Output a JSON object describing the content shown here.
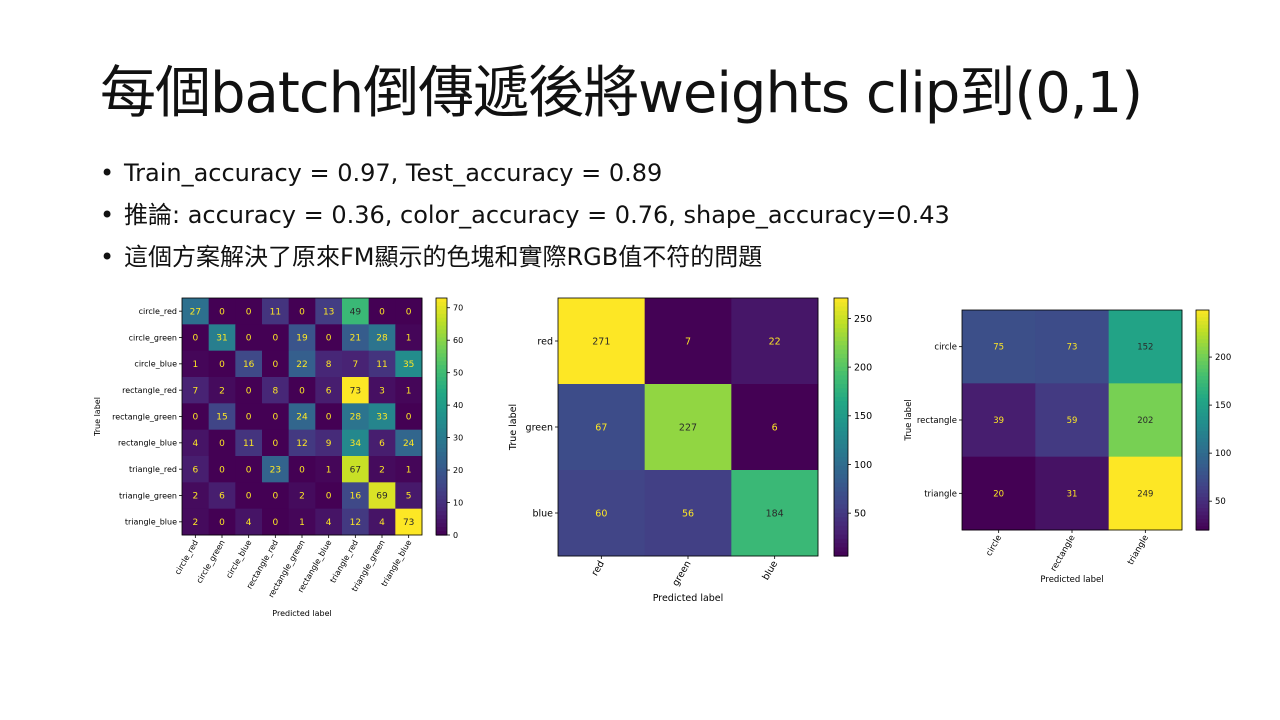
{
  "slide": {
    "title": "每個batch倒傳遞後將weights clip到(0,1)",
    "bullets": [
      "Train_accuracy = 0.97, Test_accuracy = 0.89",
      "推論: accuracy = 0.36, color_accuracy = 0.76, shape_accuracy=0.43",
      "這個方案解決了原來FM顯示的色塊和實際RGB值不符的問題"
    ]
  },
  "chart_data": [
    {
      "type": "heatmap",
      "title": "",
      "xlabel": "Predicted label",
      "ylabel": "True label",
      "colormap": "viridis",
      "categories": [
        "circle_red",
        "circle_green",
        "circle_blue",
        "rectangle_red",
        "rectangle_green",
        "rectangle_blue",
        "triangle_red",
        "triangle_green",
        "triangle_blue"
      ],
      "matrix": [
        [
          27,
          0,
          0,
          11,
          0,
          13,
          49,
          0,
          0
        ],
        [
          0,
          31,
          0,
          0,
          19,
          0,
          21,
          28,
          1
        ],
        [
          1,
          0,
          16,
          0,
          22,
          8,
          7,
          11,
          35
        ],
        [
          7,
          2,
          0,
          8,
          0,
          6,
          73,
          3,
          1
        ],
        [
          0,
          15,
          0,
          0,
          24,
          0,
          28,
          33,
          0
        ],
        [
          4,
          0,
          11,
          0,
          12,
          9,
          34,
          6,
          24
        ],
        [
          6,
          0,
          0,
          23,
          0,
          1,
          67,
          2,
          1
        ],
        [
          2,
          6,
          0,
          0,
          2,
          0,
          16,
          69,
          5
        ],
        [
          2,
          0,
          4,
          0,
          1,
          4,
          12,
          4,
          73
        ]
      ],
      "colorbar": {
        "min": 0,
        "max": 73,
        "ticks": [
          0,
          10,
          20,
          30,
          40,
          50,
          60,
          70
        ]
      }
    },
    {
      "type": "heatmap",
      "title": "",
      "xlabel": "Predicted label",
      "ylabel": "True label",
      "colormap": "viridis",
      "categories": [
        "red",
        "green",
        "blue"
      ],
      "matrix": [
        [
          271,
          7,
          22
        ],
        [
          67,
          227,
          6
        ],
        [
          60,
          56,
          184
        ]
      ],
      "colorbar": {
        "min": 6,
        "max": 271,
        "ticks": [
          50,
          100,
          150,
          200,
          250
        ]
      }
    },
    {
      "type": "heatmap",
      "title": "",
      "xlabel": "Predicted label",
      "ylabel": "True label",
      "colormap": "viridis",
      "categories": [
        "circle",
        "rectangle",
        "triangle"
      ],
      "matrix": [
        [
          75,
          73,
          152
        ],
        [
          39,
          59,
          202
        ],
        [
          20,
          31,
          249
        ]
      ],
      "colorbar": {
        "min": 20,
        "max": 249,
        "ticks": [
          50,
          100,
          150,
          200
        ]
      }
    }
  ]
}
